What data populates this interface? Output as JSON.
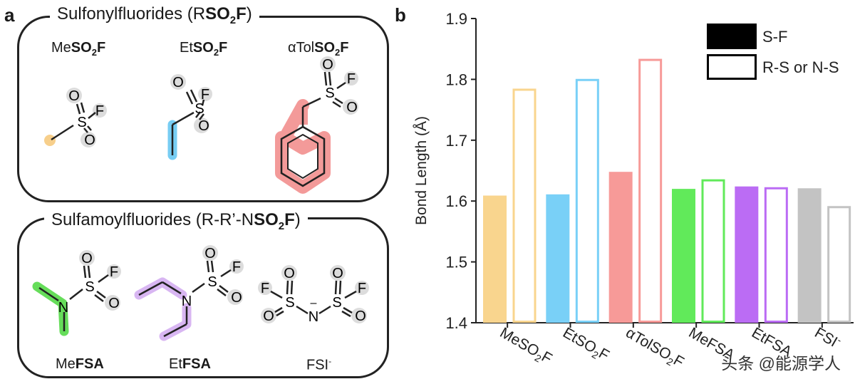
{
  "panel_a": {
    "letter": "a",
    "sulfonyl_title": [
      "Sulfonylfluorides (R",
      "SO",
      "2",
      "F",
      ")"
    ],
    "sulfamoyl_title": [
      "Sulfamoylfluorides (R-R’-N",
      "SO",
      "2",
      "F",
      ")"
    ],
    "molecules": [
      {
        "prefix": "Me",
        "bold": "SO",
        "sub": "2",
        "bold2": "F",
        "color": "#f7cf8b"
      },
      {
        "prefix": "Et",
        "bold": "SO",
        "sub": "2",
        "bold2": "F",
        "color": "#77cdf3"
      },
      {
        "prefix": "αTol",
        "bold": "SO",
        "sub": "2",
        "bold2": "F",
        "color": "#f39a99"
      },
      {
        "prefix": "Me",
        "bold": "FSA",
        "sub": "",
        "bold2": "",
        "color": "#66dd5a"
      },
      {
        "prefix": "Et",
        "bold": "FSA",
        "sub": "",
        "bold2": "",
        "color": "#d8b6f2"
      },
      {
        "prefix": "FSI",
        "bold": "",
        "sub": "-",
        "bold2": "",
        "color": "#d7d7d7"
      }
    ],
    "atoms": {
      "S": "S",
      "O": "O",
      "F": "F",
      "N": "N",
      "minus": "–"
    }
  },
  "panel_b": {
    "letter": "b"
  },
  "chart_data": {
    "type": "bar",
    "title": "",
    "xlabel": "",
    "ylabel": "Bond Length (Å)",
    "ylim": [
      1.4,
      1.9
    ],
    "yticks": [
      "1.4",
      "1.5",
      "1.6",
      "1.7",
      "1.8",
      "1.9"
    ],
    "categories": [
      "MeSO2F",
      "EtSO2F",
      "αTolSO2F",
      "MeFSA",
      "EtFSA",
      "FSI-"
    ],
    "category_labels": [
      [
        "MeSO",
        "2",
        "F"
      ],
      [
        "EtSO",
        "2",
        "F"
      ],
      [
        "αTolSO",
        "2",
        "F"
      ],
      [
        "MeFSA",
        "",
        ""
      ],
      [
        "EtFSA",
        "",
        ""
      ],
      [
        "FSI",
        "-",
        ""
      ]
    ],
    "colors": [
      "#f9d58e",
      "#79d0f7",
      "#f79a98",
      "#61ea5a",
      "#bb6cf4",
      "#c3c3c3"
    ],
    "series": [
      {
        "name": "S-F",
        "style": "filled",
        "values": [
          1.609,
          1.611,
          1.648,
          1.62,
          1.624,
          1.621
        ]
      },
      {
        "name": "R-S or N-S",
        "style": "outline",
        "values": [
          1.783,
          1.799,
          1.832,
          1.634,
          1.621,
          1.59
        ]
      }
    ],
    "legend": {
      "position": "top-right",
      "entries": [
        "S-F",
        "R-S or N-S"
      ]
    }
  },
  "watermark": "头条 @能源学人"
}
